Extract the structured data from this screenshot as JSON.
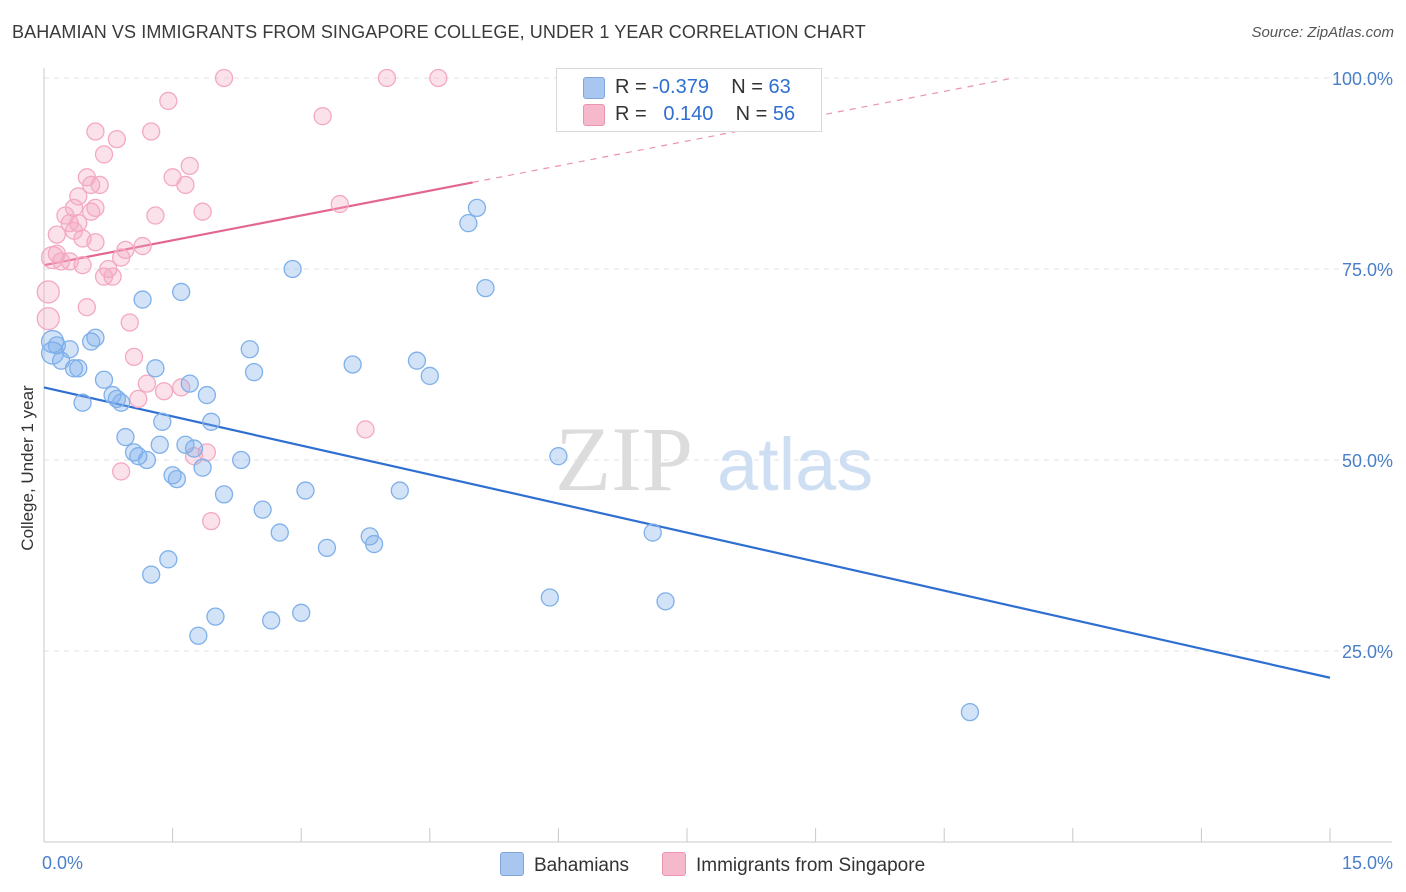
{
  "title": "BAHAMIAN VS IMMIGRANTS FROM SINGAPORE COLLEGE, UNDER 1 YEAR CORRELATION CHART",
  "source": "Source: ZipAtlas.com",
  "watermark": {
    "part1": "ZIP",
    "part2": "atlas"
  },
  "legend": {
    "rows": [
      {
        "r_label": "R =",
        "r_value": "-0.379",
        "n_label": "N =",
        "n_value": "63",
        "color": "#a9c6f0"
      },
      {
        "r_label": "R =",
        "r_value": "0.140",
        "n_label": "N =",
        "n_value": "56",
        "color": "#f6b8cb"
      }
    ]
  },
  "chart_data": {
    "type": "scatter",
    "title": "BAHAMIAN VS IMMIGRANTS FROM SINGAPORE COLLEGE, UNDER 1 YEAR CORRELATION CHART",
    "xlabel": "",
    "ylabel": "College, Under 1 year",
    "xlim": [
      0,
      15
    ],
    "ylim": [
      0,
      105
    ],
    "x_tick_labels": [
      "0.0%",
      "15.0%"
    ],
    "y_ticks": [
      25,
      50,
      75,
      100
    ],
    "y_tick_labels": [
      "25.0%",
      "50.0%",
      "75.0%",
      "100.0%"
    ],
    "series": [
      {
        "name": "Bahamians",
        "color": "#7fb0ea",
        "line_color": "#2f6fd1",
        "trend": {
          "x": [
            0,
            15
          ],
          "y": [
            59.5,
            21.5
          ],
          "dashed_from": null
        },
        "points": [
          [
            0.1,
            65.5
          ],
          [
            0.1,
            64
          ],
          [
            0.15,
            65
          ],
          [
            0.2,
            63
          ],
          [
            0.3,
            64.5
          ],
          [
            0.35,
            62
          ],
          [
            0.4,
            62
          ],
          [
            0.45,
            57.5
          ],
          [
            0.55,
            65.5
          ],
          [
            0.6,
            66
          ],
          [
            0.7,
            60.5
          ],
          [
            0.8,
            58.5
          ],
          [
            0.85,
            58
          ],
          [
            0.9,
            57.5
          ],
          [
            0.95,
            53
          ],
          [
            1.05,
            51
          ],
          [
            1.1,
            50.5
          ],
          [
            1.15,
            71
          ],
          [
            1.2,
            50
          ],
          [
            1.25,
            35
          ],
          [
            1.3,
            62
          ],
          [
            1.35,
            52
          ],
          [
            1.38,
            55
          ],
          [
            1.45,
            37
          ],
          [
            1.5,
            48
          ],
          [
            1.55,
            47.5
          ],
          [
            1.6,
            72
          ],
          [
            1.65,
            52
          ],
          [
            1.7,
            60
          ],
          [
            1.75,
            51.5
          ],
          [
            1.8,
            27
          ],
          [
            1.85,
            49
          ],
          [
            1.9,
            58.5
          ],
          [
            1.95,
            55
          ],
          [
            2.0,
            29.5
          ],
          [
            2.1,
            45.5
          ],
          [
            2.3,
            50
          ],
          [
            2.4,
            64.5
          ],
          [
            2.45,
            61.5
          ],
          [
            2.55,
            43.5
          ],
          [
            2.65,
            29
          ],
          [
            2.75,
            40.5
          ],
          [
            2.9,
            75
          ],
          [
            3.0,
            30
          ],
          [
            3.05,
            46
          ],
          [
            3.3,
            38.5
          ],
          [
            3.6,
            62.5
          ],
          [
            3.8,
            40
          ],
          [
            3.85,
            39
          ],
          [
            4.15,
            46
          ],
          [
            4.35,
            63
          ],
          [
            4.5,
            61
          ],
          [
            4.95,
            81
          ],
          [
            5.05,
            83
          ],
          [
            5.15,
            72.5
          ],
          [
            5.9,
            32
          ],
          [
            6.0,
            50.5
          ],
          [
            7.1,
            40.5
          ],
          [
            7.25,
            31.5
          ],
          [
            10.8,
            17
          ]
        ]
      },
      {
        "name": "Immigrants from Singapore",
        "color": "#f4a9c2",
        "line_color": "#e26690",
        "trend": {
          "x": [
            0,
            15
          ],
          "y": [
            75.5,
            108
          ],
          "dashed_from": 5.0
        },
        "points": [
          [
            0.05,
            72
          ],
          [
            0.05,
            68.5
          ],
          [
            0.1,
            76.5
          ],
          [
            0.15,
            77
          ],
          [
            0.15,
            79.5
          ],
          [
            0.2,
            76
          ],
          [
            0.25,
            82
          ],
          [
            0.3,
            76
          ],
          [
            0.3,
            81
          ],
          [
            0.35,
            80
          ],
          [
            0.35,
            83
          ],
          [
            0.4,
            84.5
          ],
          [
            0.4,
            81
          ],
          [
            0.45,
            75.5
          ],
          [
            0.45,
            79
          ],
          [
            0.5,
            70
          ],
          [
            0.5,
            87
          ],
          [
            0.55,
            86
          ],
          [
            0.55,
            82.5
          ],
          [
            0.6,
            78.5
          ],
          [
            0.6,
            83
          ],
          [
            0.6,
            93
          ],
          [
            0.65,
            86
          ],
          [
            0.7,
            90
          ],
          [
            0.7,
            74
          ],
          [
            0.75,
            75
          ],
          [
            0.8,
            74
          ],
          [
            0.85,
            92
          ],
          [
            0.9,
            76.5
          ],
          [
            0.9,
            48.5
          ],
          [
            0.95,
            77.5
          ],
          [
            1.0,
            68
          ],
          [
            1.05,
            63.5
          ],
          [
            1.1,
            58
          ],
          [
            1.15,
            78
          ],
          [
            1.2,
            60
          ],
          [
            1.25,
            93
          ],
          [
            1.3,
            82
          ],
          [
            1.4,
            59
          ],
          [
            1.45,
            97
          ],
          [
            1.5,
            87
          ],
          [
            1.6,
            59.5
          ],
          [
            1.65,
            86
          ],
          [
            1.7,
            88.5
          ],
          [
            1.75,
            50.5
          ],
          [
            1.85,
            82.5
          ],
          [
            1.9,
            51
          ],
          [
            1.95,
            42
          ],
          [
            2.1,
            100
          ],
          [
            3.25,
            95
          ],
          [
            3.45,
            83.5
          ],
          [
            3.75,
            54
          ],
          [
            4.0,
            100
          ],
          [
            4.6,
            100
          ]
        ]
      }
    ]
  },
  "bottom_legend": [
    {
      "label": "Bahamians",
      "color": "#a9c6f0"
    },
    {
      "label": "Immigrants from Singapore",
      "color": "#f6b8cb"
    }
  ]
}
